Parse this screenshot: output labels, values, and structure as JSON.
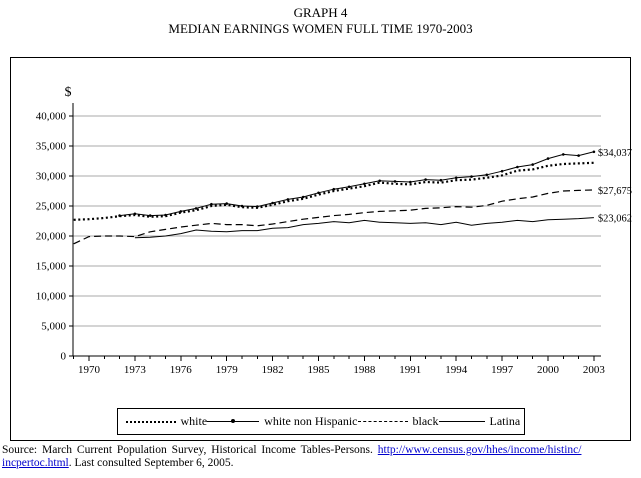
{
  "page": {
    "title_line1": "GRAPH 4",
    "title_line2": "MEDIAN EARNINGS WOMEN FULL TIME 1970-2003"
  },
  "source": {
    "prefix": "Source: March Current Population Survey, Historical Income Tables-Persons. ",
    "link1": "http://www.census.gov/hhes/income/histinc/",
    "link2": "incpertoc.html",
    "suffix": ". Last consulted September 6, 2005.",
    "link_color": "#0000cc"
  },
  "chart_data": {
    "type": "line",
    "title": "MEDIAN EARNINGS WOMEN FULL TIME 1970-2003",
    "y_axis_label": "$",
    "ylim": [
      0,
      40000
    ],
    "y_tick_step": 5000,
    "grid": true,
    "legend_position": "bottom",
    "line_color": "#000000",
    "y_tick_labels": [
      "0",
      "5,000",
      "10,000",
      "15,000",
      "20,000",
      "25,000",
      "30,000",
      "35,000",
      "40,000"
    ],
    "x_tick_labels": [
      "1970",
      "1973",
      "1976",
      "1979",
      "1982",
      "1985",
      "1988",
      "1991",
      "1994",
      "1997",
      "2000",
      "2003"
    ],
    "years": [
      1969,
      1970,
      1971,
      1972,
      1973,
      1974,
      1975,
      1976,
      1977,
      1978,
      1979,
      1980,
      1981,
      1982,
      1983,
      1984,
      1985,
      1986,
      1987,
      1988,
      1989,
      1990,
      1991,
      1992,
      1993,
      1994,
      1995,
      1996,
      1997,
      1998,
      1999,
      2000,
      2001,
      2002,
      2003
    ],
    "series": [
      {
        "name": "white",
        "style": "dotted",
        "values": [
          22700,
          22800,
          23000,
          23300,
          23500,
          23200,
          23300,
          23900,
          24300,
          25000,
          25200,
          24800,
          24700,
          25200,
          25800,
          26200,
          26900,
          27500,
          27900,
          28300,
          28900,
          28700,
          28600,
          29000,
          28900,
          29300,
          29400,
          29700,
          30100,
          30900,
          31100,
          31700,
          32000,
          32100,
          32200
        ]
      },
      {
        "name": "white non Hispanic",
        "style": "solid-marker",
        "end_label": "$34,037",
        "values": [
          null,
          null,
          null,
          23400,
          23700,
          23400,
          23500,
          24100,
          24600,
          25300,
          25400,
          25000,
          24900,
          25500,
          26100,
          26500,
          27200,
          27800,
          28200,
          28700,
          29200,
          29100,
          29000,
          29400,
          29300,
          29700,
          29900,
          30200,
          30800,
          31500,
          31900,
          32900,
          33600,
          33400,
          34037
        ]
      },
      {
        "name": "black",
        "style": "dashed",
        "end_label": "$27,675",
        "values": [
          18700,
          19900,
          20000,
          20000,
          19900,
          20700,
          21100,
          21500,
          21800,
          22100,
          21900,
          21900,
          21700,
          22000,
          22400,
          22800,
          23100,
          23400,
          23600,
          23900,
          24100,
          24200,
          24300,
          24600,
          24700,
          24900,
          24800,
          25100,
          25800,
          26200,
          26500,
          27100,
          27500,
          27600,
          27675
        ]
      },
      {
        "name": "Latina",
        "style": "solid",
        "end_label": "$23,062",
        "values": [
          null,
          null,
          null,
          null,
          19700,
          19800,
          20000,
          20400,
          21000,
          20800,
          20700,
          20900,
          20900,
          21300,
          21400,
          21900,
          22100,
          22400,
          22200,
          22600,
          22300,
          22200,
          22100,
          22200,
          21900,
          22300,
          21800,
          22100,
          22300,
          22600,
          22400,
          22700,
          22800,
          22900,
          23062
        ]
      }
    ]
  }
}
